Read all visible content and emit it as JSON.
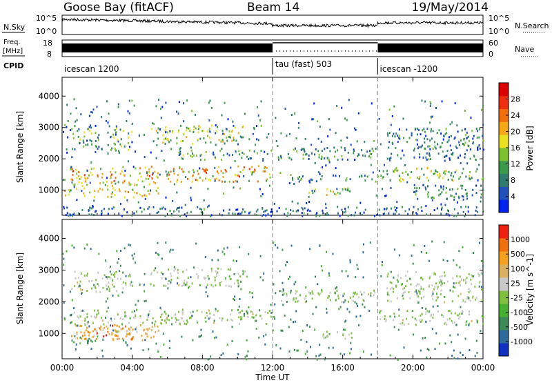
{
  "header": {
    "station": "Goose Bay (fitACF)",
    "beam": "Beam 14",
    "date": "19/May/2014"
  },
  "strips": {
    "nsky_label": "N.Sky",
    "nsearch_label": "N.Search",
    "freq_label_line1": "Freq.",
    "freq_label_line2": "[MHz]",
    "nave_label": "Nave",
    "cpid_label": "CPID",
    "left_axis_top": "10^5",
    "left_axis_bottom": "10^0",
    "right_axis_top": "10^5",
    "right_axis_bottom": "10^0",
    "freq_ticks": [
      "18",
      "8"
    ],
    "nave_ticks": [
      "60",
      "0"
    ]
  },
  "cpid_segments": [
    {
      "label": "icescan 1200",
      "start_h": 0,
      "end_h": 12
    },
    {
      "label": "tau (fast) 503",
      "start_h": 12,
      "end_h": 18
    },
    {
      "label": "icescan -1200",
      "start_h": 18,
      "end_h": 24
    }
  ],
  "chart_data": [
    {
      "type": "heatmap",
      "name": "power-panel",
      "ylabel": "Slant Range [km]",
      "xlabel": "Time UT",
      "xlim": [
        0,
        24
      ],
      "ylim": [
        200,
        4600
      ],
      "yticks": [
        1000,
        2000,
        3000,
        4000
      ],
      "xticks": [
        "00:00",
        "04:00",
        "08:00",
        "12:00",
        "16:00",
        "20:00",
        "00:00"
      ],
      "colorbar": {
        "label": "Power [dB]",
        "ticks": [
          "28",
          "24",
          "20",
          "16",
          "12",
          "8",
          "4"
        ],
        "colors": [
          "#0022ee",
          "#2050b8",
          "#2e7a6e",
          "#3a9a4a",
          "#7cc030",
          "#e8e020",
          "#f4a818",
          "#f07010",
          "#ee3010",
          "#dd0000"
        ]
      },
      "regions": [
        {
          "t0": 0.1,
          "t1": 12,
          "r0": 1300,
          "r1": 1800,
          "level": 0.65
        },
        {
          "t0": 0.1,
          "t1": 5.5,
          "r0": 800,
          "r1": 1300,
          "level": 0.55
        },
        {
          "t0": 0.5,
          "t1": 4,
          "r0": 2300,
          "r1": 3000,
          "level": 0.35
        },
        {
          "t0": 5,
          "t1": 10.5,
          "r0": 2500,
          "r1": 3100,
          "level": 0.45
        },
        {
          "t0": 6.5,
          "t1": 12,
          "r0": 2000,
          "r1": 2300,
          "level": 0.3
        },
        {
          "t0": 12,
          "t1": 18,
          "r0": 2000,
          "r1": 2400,
          "level": 0.25
        },
        {
          "t0": 13,
          "t1": 18,
          "r0": 1300,
          "r1": 1500,
          "level": 0.25
        },
        {
          "t0": 14,
          "t1": 16.5,
          "r0": 850,
          "r1": 1100,
          "level": 0.5
        },
        {
          "t0": 18,
          "t1": 24,
          "r0": 1300,
          "r1": 1750,
          "level": 0.45
        },
        {
          "t0": 18.5,
          "t1": 24,
          "r0": 2000,
          "r1": 3000,
          "level": 0.2
        },
        {
          "t0": 20,
          "t1": 24,
          "r0": 700,
          "r1": 1200,
          "level": 0.25
        },
        {
          "t0": 0,
          "t1": 24,
          "r0": 200,
          "r1": 500,
          "level": 0.15
        }
      ]
    },
    {
      "type": "heatmap",
      "name": "velocity-panel",
      "ylabel": "Slant Range [km]",
      "xlabel": "Time UT",
      "xlim": [
        0,
        24
      ],
      "ylim": [
        200,
        4600
      ],
      "yticks": [
        1000,
        2000,
        3000,
        4000
      ],
      "xticks": [
        "00:00",
        "04:00",
        "08:00",
        "12:00",
        "16:00",
        "20:00",
        "00:00"
      ],
      "colorbar": {
        "label": "Velocity [m s^-1]",
        "ticks": [
          "1000",
          "500",
          "100",
          "25",
          "-25",
          "-100",
          "-500",
          "-1000"
        ],
        "colors": [
          "#1030c0",
          "#2e6a9a",
          "#3c8a5a",
          "#48b030",
          "#80c040",
          "#c8c8c8",
          "#d8b060",
          "#f4a020",
          "#f07010",
          "#ee2010"
        ]
      },
      "regions": [
        {
          "t0": 0.1,
          "t1": 12,
          "r0": 1300,
          "r1": 1800,
          "level": 0.5
        },
        {
          "t0": 0.1,
          "t1": 5.5,
          "r0": 800,
          "r1": 1300,
          "level": 0.7
        },
        {
          "t0": 0.5,
          "t1": 4,
          "r0": 2300,
          "r1": 3000,
          "level": 0.5
        },
        {
          "t0": 5,
          "t1": 10.5,
          "r0": 2500,
          "r1": 3100,
          "level": 0.5
        },
        {
          "t0": 12,
          "t1": 18,
          "r0": 2000,
          "r1": 2400,
          "level": 0.5
        },
        {
          "t0": 14,
          "t1": 16.5,
          "r0": 850,
          "r1": 1100,
          "level": 0.5
        },
        {
          "t0": 18,
          "t1": 24,
          "r0": 1300,
          "r1": 1750,
          "level": 0.5
        },
        {
          "t0": 18.5,
          "t1": 24,
          "r0": 2000,
          "r1": 3000,
          "level": 0.5
        },
        {
          "t0": 1,
          "t1": 4,
          "r0": 800,
          "r1": 1300,
          "level": 0.85
        },
        {
          "t0": 0.5,
          "t1": 2,
          "r0": 700,
          "r1": 1000,
          "level": 0.3
        }
      ]
    }
  ]
}
